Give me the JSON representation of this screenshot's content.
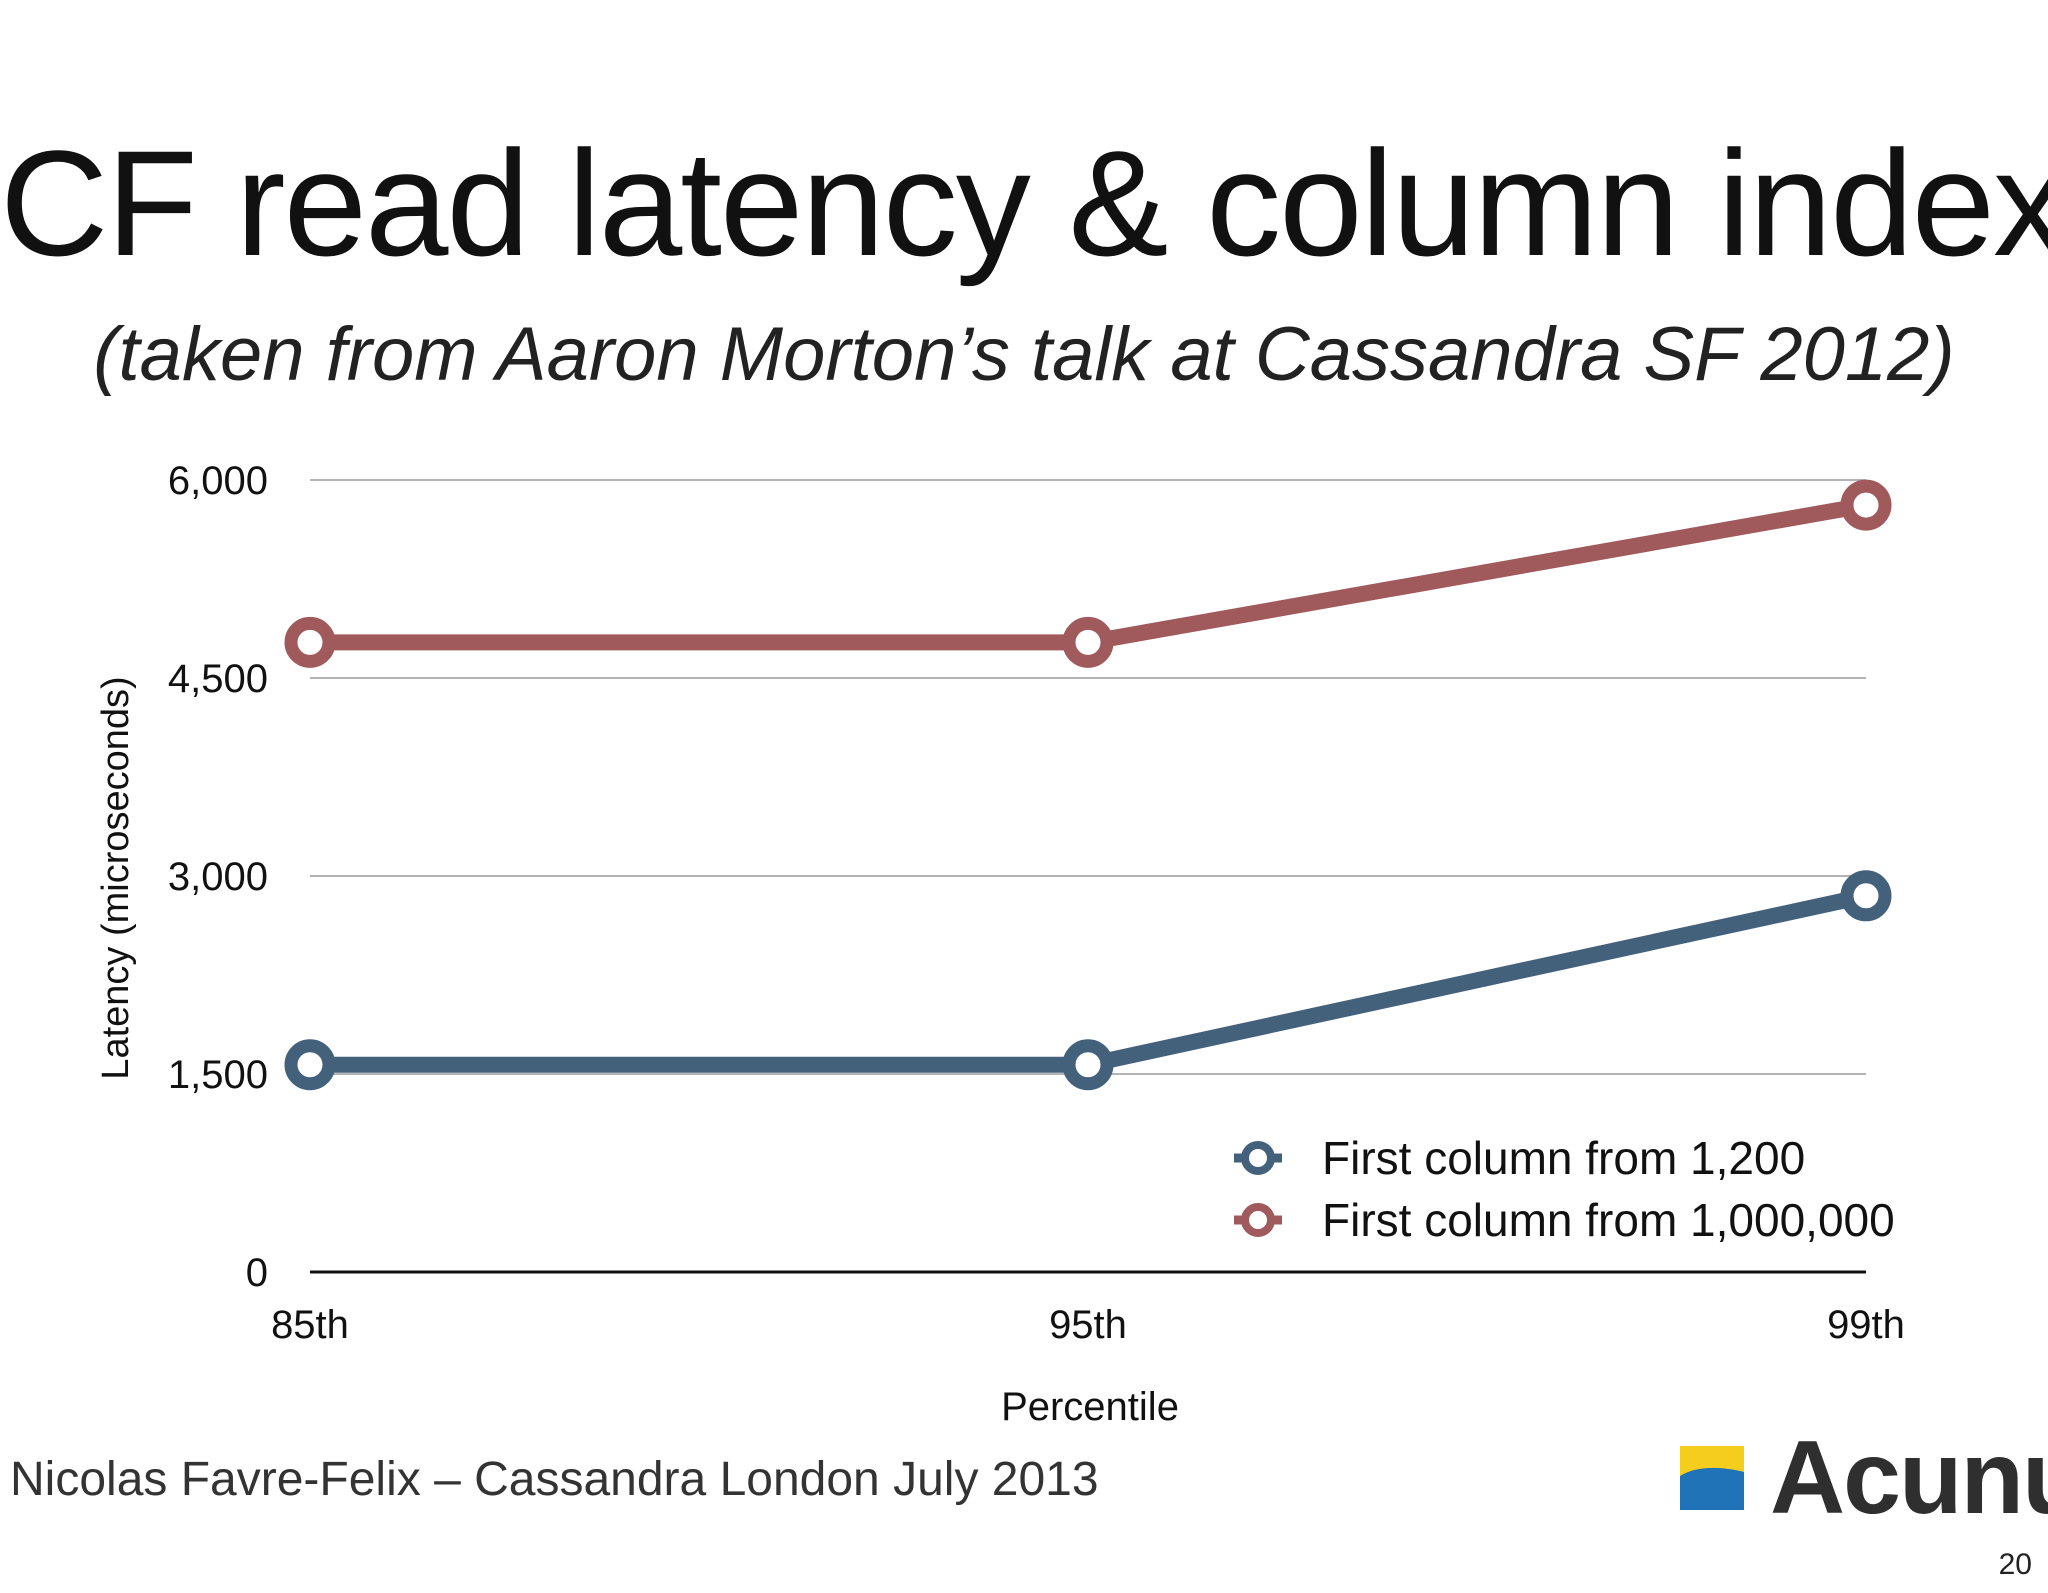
{
  "slide": {
    "title": "CF read latency & column index",
    "subtitle": "(taken from Aaron Morton’s talk at Cassandra SF 2012)",
    "footer": "Nicolas Favre-Felix – Cassandra London July 2013",
    "logo_text": "Acunu",
    "page_number": "20"
  },
  "chart_data": {
    "type": "line",
    "title": "",
    "xlabel": "Percentile",
    "ylabel": "Latency (microseconds)",
    "categories": [
      "85th",
      "95th",
      "99th"
    ],
    "ylim": [
      0,
      6000
    ],
    "yticks": [
      0,
      1500,
      3000,
      4500,
      6000
    ],
    "ytick_labels": [
      "0",
      "1,500",
      "3,000",
      "4,500",
      "6,000"
    ],
    "grid": true,
    "legend_position": "bottom-right",
    "series": [
      {
        "name": "First column from 1,200",
        "color": "#44617c",
        "values": [
          1570,
          1570,
          2850
        ]
      },
      {
        "name": "First column from 1,000,000",
        "color": "#a05a5c",
        "values": [
          4770,
          4770,
          5810
        ]
      }
    ]
  },
  "colors": {
    "gridline": "#b3b3b3",
    "axis": "#111111",
    "logo_yellow": "#f5cd1c",
    "logo_blue": "#1f73b6"
  }
}
